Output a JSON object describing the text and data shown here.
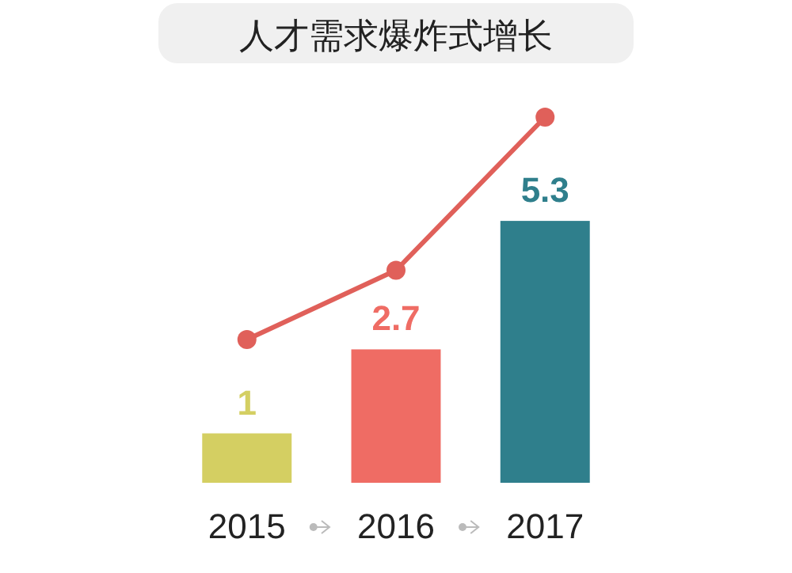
{
  "chart_data": {
    "type": "bar",
    "title": "人才需求爆炸式增长",
    "categories": [
      "2015",
      "2016",
      "2017"
    ],
    "series": [
      {
        "colors": [
          "#d4cf62",
          "#ef6c64",
          "#2f7f8c"
        ],
        "values": [
          1,
          2.7,
          5.3
        ],
        "value_labels": [
          "1",
          "2.7",
          "5.3"
        ]
      },
      {
        "type": "line",
        "color": "#e0605a",
        "values": [
          2.9,
          4.3,
          7.4
        ],
        "marker": "circle"
      }
    ],
    "grid": false
  }
}
